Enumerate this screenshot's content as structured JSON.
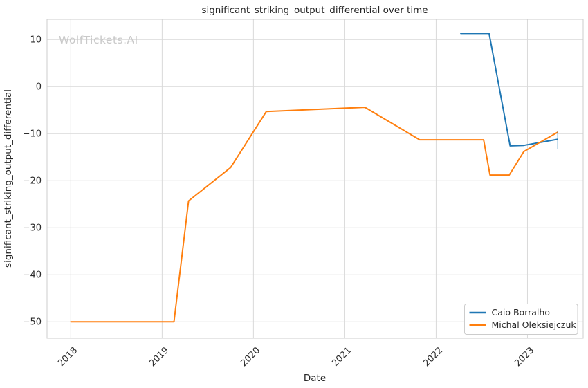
{
  "chart_data": {
    "type": "line",
    "title": "significant_striking_output_differential over time",
    "xlabel": "Date",
    "ylabel": "significant_striking_output_differential",
    "watermark": "WolfTickets.AI",
    "grid": true,
    "legend_position": "lower right",
    "x_domain": [
      2017.74,
      2023.61
    ],
    "y_domain": [
      -53.5,
      14.3
    ],
    "x_ticks": [
      {
        "value": 2018,
        "label": "2018"
      },
      {
        "value": 2019,
        "label": "2019"
      },
      {
        "value": 2020,
        "label": "2020"
      },
      {
        "value": 2021,
        "label": "2021"
      },
      {
        "value": 2022,
        "label": "2022"
      },
      {
        "value": 2023,
        "label": "2023"
      }
    ],
    "y_ticks": [
      {
        "value": 10,
        "label": "10"
      },
      {
        "value": 0,
        "label": "0"
      },
      {
        "value": -10,
        "label": "−10"
      },
      {
        "value": -20,
        "label": "−20"
      },
      {
        "value": -30,
        "label": "−30"
      },
      {
        "value": -40,
        "label": "−40"
      },
      {
        "value": -50,
        "label": "−50"
      }
    ],
    "series": [
      {
        "name": "Caio Borralho",
        "color": "#1f77b4",
        "points": [
          [
            2022.27,
            11.3
          ],
          [
            2022.58,
            11.3
          ],
          [
            2022.81,
            -12.6
          ],
          [
            2022.96,
            -12.5
          ],
          [
            2023.33,
            -11.2
          ]
        ]
      },
      {
        "name": "Michal Oleksiejczuk",
        "color": "#ff7f0e",
        "points": [
          [
            2018.0,
            -50.0
          ],
          [
            2019.13,
            -50.0
          ],
          [
            2019.29,
            -24.3
          ],
          [
            2019.75,
            -17.2
          ],
          [
            2020.14,
            -5.3
          ],
          [
            2021.22,
            -4.4
          ],
          [
            2021.82,
            -11.3
          ],
          [
            2022.52,
            -11.3
          ],
          [
            2022.59,
            -18.8
          ],
          [
            2022.8,
            -18.8
          ],
          [
            2022.96,
            -13.8
          ],
          [
            2023.33,
            -9.7
          ]
        ]
      }
    ],
    "end_marker": {
      "x": 2023.33,
      "y_from": -9.5,
      "y_to": -13.3,
      "color": "#1f77b4",
      "opacity": 0.4
    }
  }
}
